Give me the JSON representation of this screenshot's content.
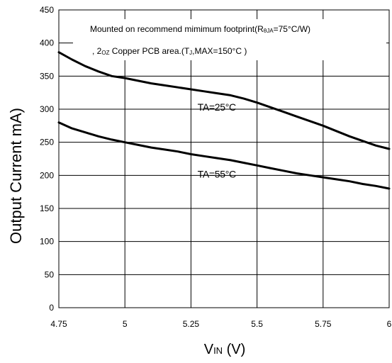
{
  "chart_data": {
    "type": "line",
    "title": "",
    "xlabel": {
      "main": "V",
      "sub": "IN",
      "unit": " (V)"
    },
    "ylabel": "Output Current mA)",
    "xlim": [
      4.75,
      6
    ],
    "ylim": [
      0,
      450
    ],
    "grid": true,
    "x_ticks": [
      4.75,
      5,
      5.25,
      5.5,
      5.75,
      6
    ],
    "x_tick_labels": [
      "4.75",
      "5",
      "5.25",
      "5.5",
      "5.75",
      "6"
    ],
    "y_ticks": [
      0,
      50,
      100,
      150,
      200,
      250,
      300,
      350,
      400,
      450
    ],
    "y_tick_labels": [
      "0",
      "50",
      "100",
      "150",
      "200",
      "250",
      "300",
      "350",
      "400",
      "450"
    ],
    "annotation": {
      "line1_prefix": "Mounted on recommend mimimum footprint(R",
      "line1_sub": "θJA",
      "line1_suffix": "=75°C/W)",
      "line2_prefix": ", 2",
      "line2_sub1": "OZ",
      "line2_mid": " Copper  PCB area.(T",
      "line2_sub2": "J",
      "line2_suffix": ",MAX=150°C )"
    },
    "series": [
      {
        "name": "TA=25°C",
        "x": [
          4.75,
          4.8,
          4.85,
          4.9,
          4.95,
          5.0,
          5.05,
          5.1,
          5.15,
          5.2,
          5.25,
          5.3,
          5.35,
          5.4,
          5.45,
          5.5,
          5.55,
          5.6,
          5.65,
          5.7,
          5.75,
          5.8,
          5.85,
          5.9,
          5.95,
          6.0
        ],
        "values": [
          386,
          375,
          365,
          357,
          350,
          347,
          343,
          339,
          336,
          333,
          330,
          327,
          324,
          321,
          316,
          310,
          303,
          296,
          289,
          282,
          275,
          267,
          259,
          252,
          245,
          240
        ]
      },
      {
        "name": "TA=55°C",
        "x": [
          4.75,
          4.8,
          4.85,
          4.9,
          4.95,
          5.0,
          5.05,
          5.1,
          5.15,
          5.2,
          5.25,
          5.3,
          5.35,
          5.4,
          5.45,
          5.5,
          5.55,
          5.6,
          5.65,
          5.7,
          5.75,
          5.8,
          5.85,
          5.9,
          5.95,
          6.0
        ],
        "values": [
          280,
          271,
          265,
          259,
          254,
          250,
          246,
          242,
          239,
          236,
          232,
          229,
          226,
          223,
          219,
          215,
          211,
          207,
          203,
          200,
          197,
          194,
          191,
          187,
          184,
          180
        ]
      }
    ]
  }
}
